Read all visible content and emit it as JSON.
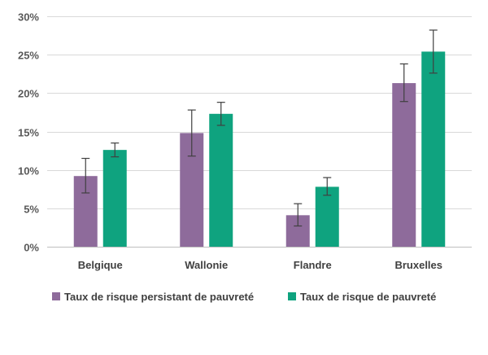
{
  "chart_data": {
    "type": "bar",
    "title": "",
    "xlabel": "",
    "ylabel": "",
    "categories": [
      "Belgique",
      "Wallonie",
      "Flandre",
      "Bruxelles"
    ],
    "ylim": [
      0,
      30
    ],
    "yticks": [
      0,
      5,
      10,
      15,
      20,
      25,
      30
    ],
    "ytick_labels": [
      "0%",
      "5%",
      "10%",
      "15%",
      "20%",
      "25%",
      "30%"
    ],
    "grid": true,
    "legend_position": "bottom",
    "error_bars": true,
    "series": [
      {
        "name": "Taux de risque persistant de pauvreté",
        "color": "#8E6B9B",
        "values": [
          9.2,
          14.8,
          4.1,
          21.3
        ],
        "err_low": [
          7.0,
          11.8,
          2.7,
          18.9
        ],
        "err_high": [
          11.5,
          17.8,
          5.6,
          23.8
        ]
      },
      {
        "name": "Taux de risque de pauvreté",
        "color": "#0FA37F",
        "values": [
          12.6,
          17.3,
          7.8,
          25.4
        ],
        "err_low": [
          11.7,
          15.8,
          6.7,
          22.6
        ],
        "err_high": [
          13.5,
          18.8,
          9.0,
          28.2
        ]
      }
    ]
  }
}
